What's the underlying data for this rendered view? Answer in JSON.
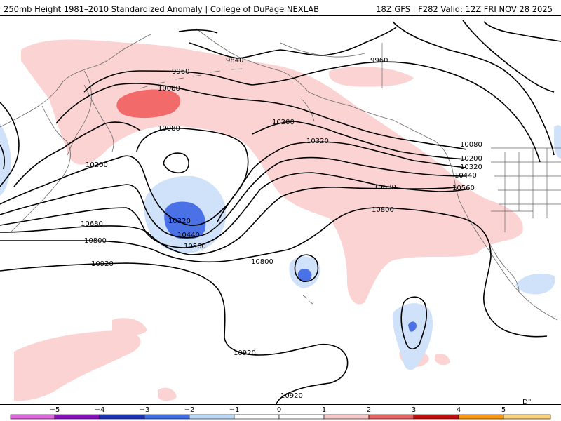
{
  "header": {
    "title_left": "250mb Height 1981–2010 Standardized Anomaly | College of DuPage NEXLAB",
    "title_right": "18Z GFS | F282 Valid: 12Z FRI NOV 28 2025"
  },
  "contour_labels": {
    "c9840": "9840",
    "c9960a": "9960",
    "c9960b": "9960",
    "c10080a": "10080",
    "c10080b": "10080",
    "c10080c": "10080",
    "c10200a": "10200",
    "c10200b": "10200",
    "c10200c": "10200",
    "c10320a": "10320",
    "c10320b": "10320",
    "c10320c": "10320",
    "c10440a": "10440",
    "c10440b": "10440",
    "c10560a": "10560",
    "c10560b": "10560",
    "c10680a": "10680",
    "c10680b": "10680",
    "c10800a": "10800",
    "c10800b": "10800",
    "c10800c": "10800",
    "c10920a": "10920",
    "c10920b": "10920",
    "c10920c": "10920"
  },
  "colorbar": {
    "ticks": [
      "−5",
      "−4",
      "−3",
      "−2",
      "−1",
      "0",
      "1",
      "2",
      "3",
      "4",
      "5"
    ],
    "colors": [
      "#e066e0",
      "#8b10c0",
      "#1a35b8",
      "#3e6fe6",
      "#bcd8f8",
      "#ffffff",
      "#ffffff",
      "#f9c8c8",
      "#e86464",
      "#c01010",
      "#ff9a10",
      "#ffd27a"
    ]
  },
  "colors": {
    "pos1": "#fbd3d3",
    "pos2": "#f26a6a",
    "neg1": "#cfe2fa",
    "neg2": "#4a72e6",
    "contour": "#000000"
  },
  "corner_text": "D°"
}
